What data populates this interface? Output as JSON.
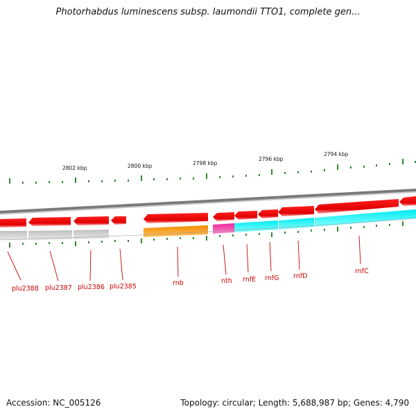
{
  "title": "Photorhabdus luminescens subsp. laumondii TTO1, complete gen...",
  "footer": {
    "accession": "Accession: NC_005126",
    "summary": "Topology: circular; Length: 5,688,987 bp; Genes: 4,790"
  },
  "colors": {
    "forward_gene": "#ee0000",
    "reverse_gene": "#ee0000",
    "backbone": "#8a8a8a",
    "tick": "#1a7a1a",
    "label": "#cc0000",
    "track_grey": "#c8c8c8",
    "track_orange": "#f08c00",
    "track_magenta": "#e8289c",
    "track_cyan": "#00f0f0"
  },
  "scale_labels": [
    "2802 kbp",
    "2800 kbp",
    "2798 kbp",
    "2796 kbp",
    "2794 kbp"
  ],
  "genes": [
    "plu2388",
    "plu2387",
    "plu2386",
    "plu2385",
    "rnb",
    "nth",
    "rnfE",
    "rnfG",
    "rnfD",
    "rnfC"
  ]
}
